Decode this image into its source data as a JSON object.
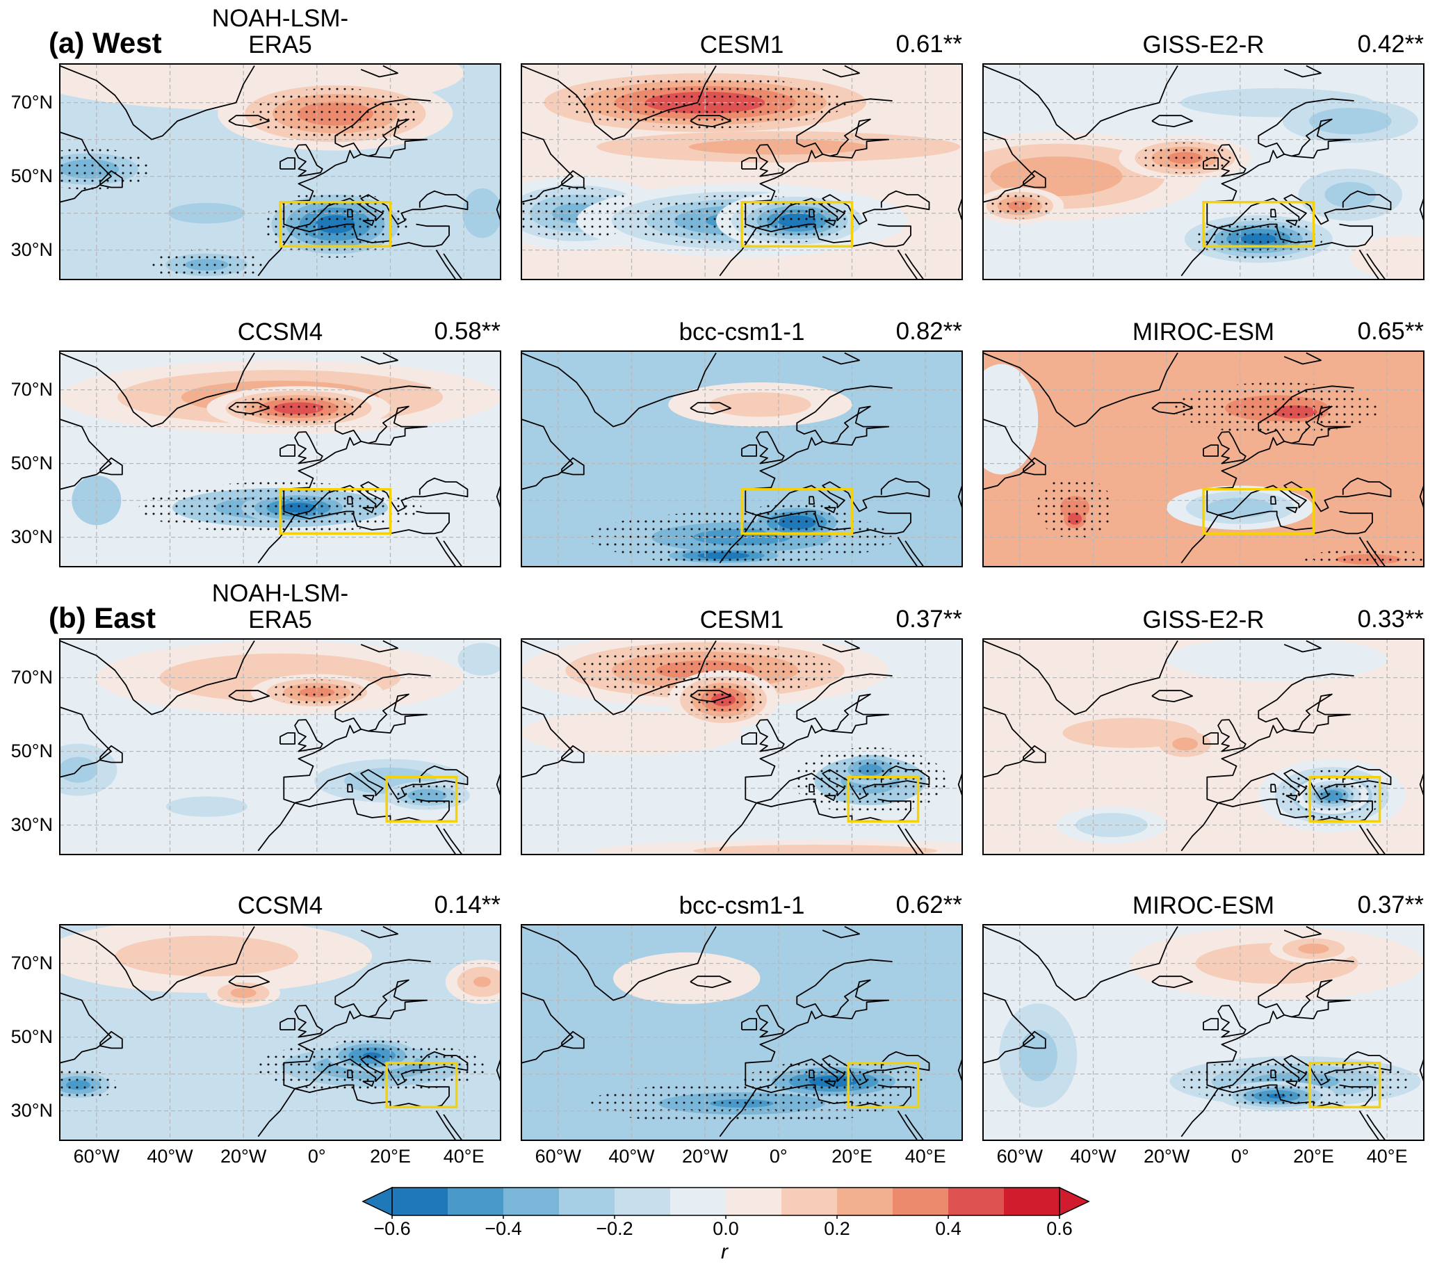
{
  "sections": [
    {
      "label": "(a) West",
      "box": {
        "lon": [
          -10,
          20
        ],
        "lat": [
          31,
          43
        ]
      },
      "panels": [
        {
          "title": [
            "NOAH-LSM-",
            "ERA5"
          ],
          "r": ""
        },
        {
          "title": [
            "CESM1"
          ],
          "r": "0.61**"
        },
        {
          "title": [
            "GISS-E2-R"
          ],
          "r": "0.42**"
        },
        {
          "title": [
            "CCSM4"
          ],
          "r": "0.58**"
        },
        {
          "title": [
            "bcc-csm1-1"
          ],
          "r": "0.82**"
        },
        {
          "title": [
            "MIROC-ESM"
          ],
          "r": "0.65**"
        }
      ]
    },
    {
      "label": "(b) East",
      "box": {
        "lon": [
          19,
          38
        ],
        "lat": [
          31,
          43
        ]
      },
      "panels": [
        {
          "title": [
            "NOAH-LSM-",
            "ERA5"
          ],
          "r": ""
        },
        {
          "title": [
            "CESM1"
          ],
          "r": "0.37**"
        },
        {
          "title": [
            "GISS-E2-R"
          ],
          "r": "0.33**"
        },
        {
          "title": [
            "CCSM4"
          ],
          "r": "0.14**"
        },
        {
          "title": [
            "bcc-csm1-1"
          ],
          "r": "0.62**"
        },
        {
          "title": [
            "MIROC-ESM"
          ],
          "r": "0.37**"
        }
      ]
    }
  ],
  "axes": {
    "lat_labels": [
      "70°N",
      "50°N",
      "30°N"
    ],
    "lat_values": [
      70,
      50,
      30
    ],
    "lon_labels": [
      "60°W",
      "40°W",
      "20°W",
      "0°",
      "20°E",
      "40°E"
    ],
    "lon_values": [
      -60,
      -40,
      -20,
      0,
      20,
      40
    ],
    "lon_range": [
      -70,
      50
    ],
    "lat_range": [
      22,
      80.5
    ]
  },
  "colorbar": {
    "label": "r",
    "ticks": [
      "−0.6",
      "−0.4",
      "−0.2",
      "0.0",
      "0.2",
      "0.4",
      "0.6"
    ],
    "levels": [
      -0.6,
      -0.5,
      -0.4,
      -0.3,
      -0.2,
      -0.1,
      0,
      0.1,
      0.2,
      0.3,
      0.4,
      0.5,
      0.6
    ],
    "colors": [
      "#1f78b8",
      "#4a9ac9",
      "#7ab6d7",
      "#a6cee4",
      "#c7deed",
      "#e6eef4",
      "#f6e9e4",
      "#f5cdb8",
      "#f2b090",
      "#ec8a6e",
      "#df5252",
      "#d01c2c"
    ]
  },
  "box_color": "#f5d10a"
}
